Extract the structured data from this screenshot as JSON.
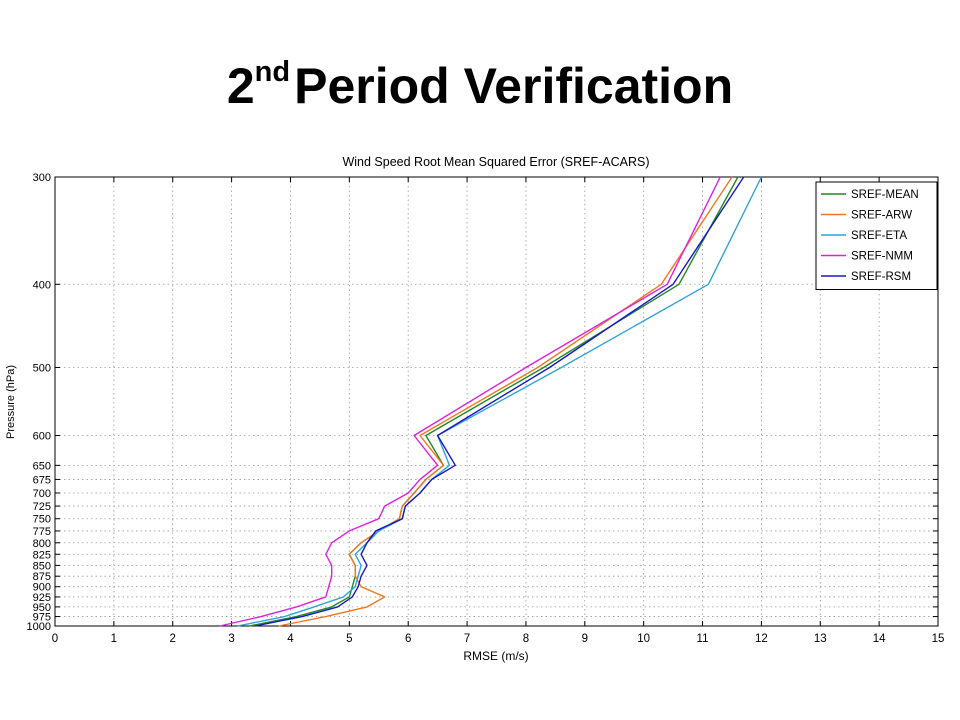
{
  "slide": {
    "title_num": "2",
    "title_sup": "nd",
    "title_rest": "Period Verification"
  },
  "chart_data": {
    "type": "line",
    "title": "Wind Speed Root Mean Squared Error (SREF-ACARS)",
    "xlabel": "RMSE (m/s)",
    "ylabel": "Pressure (hPa)",
    "xlim": [
      0,
      15
    ],
    "xticks": [
      0,
      1,
      2,
      3,
      4,
      5,
      6,
      7,
      8,
      9,
      10,
      11,
      12,
      13,
      14,
      15
    ],
    "ylim": [
      300,
      1000
    ],
    "yaxis_reversed": true,
    "yscale": "pressure (non-linear, log-like spacing)",
    "yticks": [
      300,
      400,
      500,
      600,
      650,
      675,
      700,
      725,
      750,
      775,
      800,
      825,
      850,
      875,
      900,
      925,
      950,
      975,
      1000
    ],
    "grid": true,
    "grid_style": "dotted",
    "legend_position": "top-right",
    "series": [
      {
        "name": "SREF-MEAN",
        "color": "#218a21",
        "points": [
          [
            11.6,
            300
          ],
          [
            10.6,
            400
          ],
          [
            8.3,
            500
          ],
          [
            6.3,
            600
          ],
          [
            6.6,
            650
          ],
          [
            6.3,
            675
          ],
          [
            6.1,
            700
          ],
          [
            5.9,
            725
          ],
          [
            5.85,
            750
          ],
          [
            5.5,
            775
          ],
          [
            5.2,
            800
          ],
          [
            5.0,
            825
          ],
          [
            5.1,
            850
          ],
          [
            5.1,
            875
          ],
          [
            5.05,
            900
          ],
          [
            5.0,
            925
          ],
          [
            4.7,
            950
          ],
          [
            4.1,
            975
          ],
          [
            3.3,
            1000
          ]
        ]
      },
      {
        "name": "SREF-ARW",
        "color": "#f07820",
        "points": [
          [
            11.5,
            300
          ],
          [
            10.3,
            400
          ],
          [
            8.2,
            500
          ],
          [
            6.2,
            600
          ],
          [
            6.6,
            650
          ],
          [
            6.3,
            675
          ],
          [
            6.1,
            700
          ],
          [
            5.9,
            725
          ],
          [
            5.85,
            750
          ],
          [
            5.5,
            775
          ],
          [
            5.2,
            800
          ],
          [
            5.0,
            825
          ],
          [
            5.1,
            850
          ],
          [
            5.1,
            875
          ],
          [
            5.2,
            900
          ],
          [
            5.6,
            925
          ],
          [
            5.3,
            950
          ],
          [
            4.6,
            975
          ],
          [
            3.8,
            1000
          ]
        ]
      },
      {
        "name": "SREF-ETA",
        "color": "#2fa2e0",
        "points": [
          [
            12.0,
            300
          ],
          [
            11.1,
            400
          ],
          [
            8.6,
            500
          ],
          [
            6.5,
            600
          ],
          [
            6.7,
            650
          ],
          [
            6.4,
            675
          ],
          [
            6.2,
            700
          ],
          [
            5.95,
            725
          ],
          [
            5.9,
            750
          ],
          [
            5.5,
            775
          ],
          [
            5.3,
            800
          ],
          [
            5.1,
            825
          ],
          [
            5.2,
            850
          ],
          [
            5.15,
            875
          ],
          [
            5.1,
            900
          ],
          [
            4.9,
            925
          ],
          [
            4.4,
            950
          ],
          [
            3.9,
            975
          ],
          [
            3.1,
            1000
          ]
        ]
      },
      {
        "name": "SREF-NMM",
        "color": "#e020e0",
        "points": [
          [
            11.3,
            300
          ],
          [
            10.4,
            400
          ],
          [
            8.0,
            500
          ],
          [
            6.1,
            600
          ],
          [
            6.5,
            650
          ],
          [
            6.2,
            675
          ],
          [
            6.0,
            700
          ],
          [
            5.6,
            725
          ],
          [
            5.5,
            750
          ],
          [
            5.0,
            775
          ],
          [
            4.7,
            800
          ],
          [
            4.6,
            825
          ],
          [
            4.7,
            850
          ],
          [
            4.7,
            875
          ],
          [
            4.65,
            900
          ],
          [
            4.6,
            925
          ],
          [
            4.1,
            950
          ],
          [
            3.5,
            975
          ],
          [
            2.8,
            1000
          ]
        ]
      },
      {
        "name": "SREF-RSM",
        "color": "#1818c8",
        "points": [
          [
            11.7,
            300
          ],
          [
            10.5,
            400
          ],
          [
            8.4,
            500
          ],
          [
            6.5,
            600
          ],
          [
            6.8,
            650
          ],
          [
            6.4,
            675
          ],
          [
            6.2,
            700
          ],
          [
            5.95,
            725
          ],
          [
            5.9,
            750
          ],
          [
            5.45,
            775
          ],
          [
            5.3,
            800
          ],
          [
            5.2,
            825
          ],
          [
            5.3,
            850
          ],
          [
            5.2,
            875
          ],
          [
            5.15,
            900
          ],
          [
            5.05,
            925
          ],
          [
            4.8,
            950
          ],
          [
            4.2,
            975
          ],
          [
            3.4,
            1000
          ]
        ]
      }
    ]
  }
}
